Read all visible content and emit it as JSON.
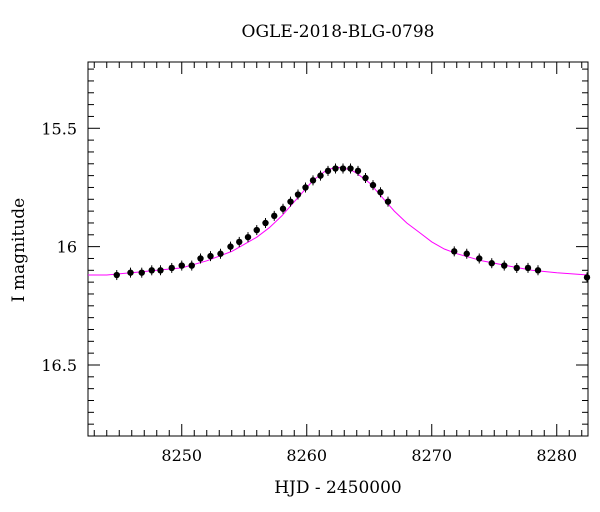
{
  "chart_data": {
    "type": "scatter",
    "title": "OGLE-2018-BLG-0798",
    "xlabel": "HJD - 2450000",
    "ylabel": "I magnitude",
    "xlim": [
      8242.5,
      8282.5
    ],
    "ylim": [
      16.8,
      15.22
    ],
    "y_inverted": true,
    "xticks": [
      8250,
      8260,
      8270,
      8280
    ],
    "yticks": [
      15.5,
      16,
      16.5
    ],
    "grid": false,
    "colors": {
      "points": "#000000",
      "model": "#ff00ff"
    },
    "series": [
      {
        "x": [
          8244.8,
          8245.9,
          8246.8,
          8247.6,
          8248.3,
          8249.2,
          8250.0,
          8250.8,
          8251.5,
          8252.3,
          8253.1,
          8253.9,
          8254.6,
          8255.3,
          8256.0,
          8256.7,
          8257.4,
          8258.1,
          8258.7,
          8259.3,
          8259.9,
          8260.5,
          8261.1,
          8261.7,
          8262.3,
          8262.9,
          8263.5,
          8264.1,
          8264.7,
          8265.3,
          8265.9,
          8266.5,
          8271.8,
          8272.8,
          8273.8,
          8274.8,
          8275.8,
          8276.8,
          8277.7,
          8278.5,
          8282.5
        ],
        "y": [
          16.12,
          16.11,
          16.11,
          16.1,
          16.1,
          16.09,
          16.08,
          16.08,
          16.05,
          16.04,
          16.03,
          16.0,
          15.98,
          15.96,
          15.93,
          15.9,
          15.87,
          15.84,
          15.81,
          15.78,
          15.75,
          15.72,
          15.7,
          15.68,
          15.67,
          15.67,
          15.67,
          15.68,
          15.71,
          15.74,
          15.77,
          15.81,
          16.02,
          16.03,
          16.05,
          16.07,
          16.08,
          16.09,
          16.09,
          16.1,
          16.13
        ]
      }
    ],
    "model": {
      "x": [
        8242.5,
        8244,
        8246,
        8248,
        8250,
        8252,
        8254,
        8255,
        8256,
        8257,
        8258,
        8259,
        8260,
        8260.5,
        8261,
        8261.5,
        8262,
        8262.5,
        8263,
        8263.5,
        8264,
        8264.5,
        8265,
        8266,
        8267,
        8268,
        8269,
        8270,
        8271,
        8272,
        8274,
        8276,
        8278,
        8280,
        8282.5
      ],
      "y": [
        16.12,
        16.12,
        16.11,
        16.1,
        16.09,
        16.06,
        16.02,
        15.99,
        15.96,
        15.92,
        15.87,
        15.81,
        15.75,
        15.72,
        15.7,
        15.68,
        15.67,
        15.665,
        15.67,
        15.675,
        15.69,
        15.71,
        15.73,
        15.79,
        15.85,
        15.9,
        15.94,
        15.98,
        16.01,
        16.03,
        16.06,
        16.08,
        16.1,
        16.11,
        16.12
      ]
    }
  }
}
